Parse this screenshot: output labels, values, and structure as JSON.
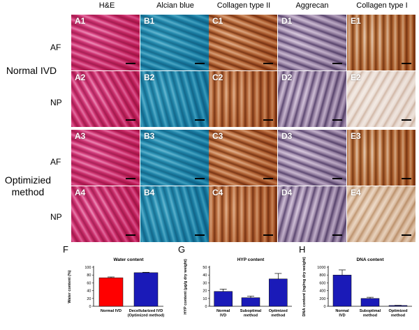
{
  "columns": [
    "H&E",
    "Alcian blue",
    "Collagen type II",
    "Aggrecan",
    "Collagen type I"
  ],
  "row_labels": [
    "AF",
    "NP",
    "AF",
    "NP"
  ],
  "groups": [
    "Normal IVD",
    "Optimizied method"
  ],
  "tiles": [
    [
      "A1",
      "B1",
      "C1",
      "D1",
      "E1"
    ],
    [
      "A2",
      "B2",
      "C2",
      "D2",
      "E2"
    ],
    [
      "A3",
      "B3",
      "C3",
      "D3",
      "E3"
    ],
    [
      "A4",
      "B4",
      "C4",
      "D4",
      "E4"
    ]
  ],
  "colors": {
    "he": "#d94c8e",
    "alcian": "#3fa8c4",
    "collagen2": "#c98a5a",
    "aggrecan": "#b7a7c0",
    "collagen1": "#c98b55",
    "bar_red": "#ff0000",
    "bar_blue": "#1a1ab8"
  },
  "chart_data": [
    {
      "panel": "F",
      "type": "bar",
      "title": "Water content",
      "ylabel": "Water content (%)",
      "categories": [
        "Normal IVD",
        "Decellularized IVD (Optimized method)"
      ],
      "values": [
        73,
        86
      ],
      "errors": [
        2,
        1
      ],
      "colors": [
        "#ff0000",
        "#1a1ab8"
      ],
      "ylim": [
        0,
        100
      ],
      "yticks": [
        0,
        20,
        40,
        60,
        80,
        100
      ]
    },
    {
      "panel": "G",
      "type": "bar",
      "title": "HYP content",
      "ylabel": "HYP content (µg/g dry weight)",
      "categories": [
        "Normal IVD",
        "Suboptimal method",
        "Optimized method"
      ],
      "values": [
        19,
        11,
        35
      ],
      "errors": [
        3,
        2,
        7
      ],
      "colors": [
        "#1a1ab8",
        "#1a1ab8",
        "#1a1ab8"
      ],
      "ylim": [
        0,
        50
      ],
      "yticks": [
        0,
        10,
        20,
        30,
        40,
        50
      ]
    },
    {
      "panel": "H",
      "type": "bar",
      "title": "DNA content",
      "ylabel": "DNA content (ng/mg dry weight)",
      "categories": [
        "Normal IVD",
        "Suboptimal method",
        "Optimized method"
      ],
      "values": [
        800,
        200,
        20
      ],
      "errors": [
        130,
        30,
        5
      ],
      "colors": [
        "#1a1ab8",
        "#1a1ab8",
        "#1a1ab8"
      ],
      "ylim": [
        0,
        1000
      ],
      "yticks": [
        0,
        200,
        400,
        600,
        800,
        1000
      ]
    }
  ]
}
